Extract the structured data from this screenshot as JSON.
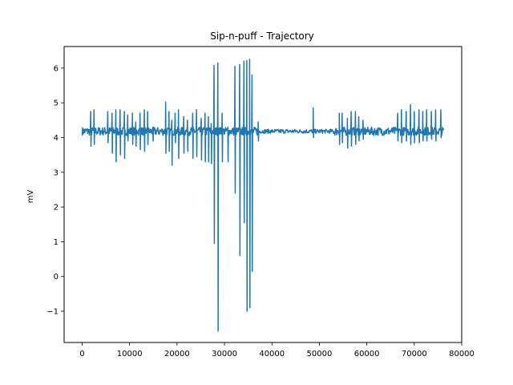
{
  "chart_data": {
    "type": "line",
    "title": "Sip-n-puff - Trajectory",
    "xlabel": "",
    "ylabel": "mV",
    "xlim": [
      -3800,
      80000
    ],
    "ylim": [
      -1.9,
      6.62
    ],
    "grid": false,
    "x_ticks": [
      0,
      10000,
      20000,
      30000,
      40000,
      50000,
      60000,
      70000,
      80000
    ],
    "x_tick_labels": [
      "0",
      "10000",
      "20000",
      "30000",
      "40000",
      "50000",
      "60000",
      "70000",
      "80000"
    ],
    "y_ticks": [
      -1,
      0,
      1,
      2,
      3,
      4,
      5,
      6
    ],
    "y_tick_labels": [
      "−1",
      "0",
      "1",
      "2",
      "3",
      "4",
      "5",
      "6"
    ],
    "series": [
      {
        "name": "Trajectory",
        "color": "#1f77b4",
        "baseline": 4.18,
        "noise": 0.12,
        "x_range": [
          0,
          76300
        ],
        "spikes": [
          {
            "x": 1800,
            "hi": 4.75,
            "lo": 3.75
          },
          {
            "x": 2500,
            "hi": 4.8,
            "lo": 3.8
          },
          {
            "x": 5400,
            "hi": 4.75,
            "lo": 3.85
          },
          {
            "x": 6300,
            "hi": 4.7,
            "lo": 3.55
          },
          {
            "x": 7100,
            "hi": 4.8,
            "lo": 3.3
          },
          {
            "x": 8000,
            "hi": 4.8,
            "lo": 3.5
          },
          {
            "x": 8900,
            "hi": 4.75,
            "lo": 3.4
          },
          {
            "x": 9600,
            "hi": 4.65,
            "lo": 3.9
          },
          {
            "x": 10600,
            "hi": 4.7,
            "lo": 3.8
          },
          {
            "x": 11300,
            "hi": 4.45,
            "lo": 3.75
          },
          {
            "x": 12200,
            "hi": 4.7,
            "lo": 3.65
          },
          {
            "x": 13100,
            "hi": 4.8,
            "lo": 3.6
          },
          {
            "x": 13800,
            "hi": 4.75,
            "lo": 3.8
          },
          {
            "x": 14900,
            "hi": 4.3,
            "lo": 3.9
          },
          {
            "x": 17600,
            "hi": 5.02,
            "lo": 3.55
          },
          {
            "x": 18300,
            "hi": 4.75,
            "lo": 3.6
          },
          {
            "x": 18900,
            "hi": 4.5,
            "lo": 3.2
          },
          {
            "x": 19600,
            "hi": 4.7,
            "lo": 3.85
          },
          {
            "x": 20300,
            "hi": 4.8,
            "lo": 3.4
          },
          {
            "x": 21400,
            "hi": 4.6,
            "lo": 3.55
          },
          {
            "x": 22200,
            "hi": 4.5,
            "lo": 3.6
          },
          {
            "x": 23300,
            "hi": 4.7,
            "lo": 3.4
          },
          {
            "x": 24100,
            "hi": 4.8,
            "lo": 3.45
          },
          {
            "x": 25100,
            "hi": 4.55,
            "lo": 3.35
          },
          {
            "x": 25900,
            "hi": 4.7,
            "lo": 3.3
          },
          {
            "x": 26600,
            "hi": 4.6,
            "lo": 3.3
          },
          {
            "x": 27200,
            "hi": 4.4,
            "lo": 3.25
          },
          {
            "x": 27800,
            "hi": 6.08,
            "lo": 0.95
          },
          {
            "x": 28600,
            "hi": 6.15,
            "lo": -1.57
          },
          {
            "x": 29500,
            "hi": 4.7,
            "lo": 3.3
          },
          {
            "x": 30700,
            "hi": 4.3,
            "lo": 3.3
          },
          {
            "x": 32200,
            "hi": 6.05,
            "lo": 2.4
          },
          {
            "x": 33200,
            "hi": 6.1,
            "lo": 0.6
          },
          {
            "x": 34100,
            "hi": 6.2,
            "lo": 1.55
          },
          {
            "x": 34700,
            "hi": 6.22,
            "lo": -1.0
          },
          {
            "x": 35300,
            "hi": 6.25,
            "lo": -0.9
          },
          {
            "x": 35800,
            "hi": 5.8,
            "lo": 0.15
          },
          {
            "x": 37100,
            "hi": 4.45,
            "lo": 3.9
          },
          {
            "x": 48700,
            "hi": 4.85,
            "lo": 4.0
          },
          {
            "x": 54200,
            "hi": 4.7,
            "lo": 3.8
          },
          {
            "x": 54800,
            "hi": 4.7,
            "lo": 3.85
          },
          {
            "x": 55900,
            "hi": 4.55,
            "lo": 3.7
          },
          {
            "x": 56700,
            "hi": 4.75,
            "lo": 3.75
          },
          {
            "x": 57600,
            "hi": 4.75,
            "lo": 3.8
          },
          {
            "x": 58300,
            "hi": 4.6,
            "lo": 3.9
          },
          {
            "x": 59200,
            "hi": 4.5,
            "lo": 3.95
          },
          {
            "x": 66500,
            "hi": 4.7,
            "lo": 3.9
          },
          {
            "x": 67300,
            "hi": 4.8,
            "lo": 3.85
          },
          {
            "x": 68300,
            "hi": 4.75,
            "lo": 3.9
          },
          {
            "x": 69200,
            "hi": 4.95,
            "lo": 3.8
          },
          {
            "x": 70000,
            "hi": 4.75,
            "lo": 3.85
          },
          {
            "x": 71000,
            "hi": 4.8,
            "lo": 3.85
          },
          {
            "x": 71800,
            "hi": 4.75,
            "lo": 3.9
          },
          {
            "x": 72600,
            "hi": 4.8,
            "lo": 3.9
          },
          {
            "x": 73600,
            "hi": 4.75,
            "lo": 3.95
          },
          {
            "x": 74500,
            "hi": 4.8,
            "lo": 3.9
          },
          {
            "x": 75600,
            "hi": 4.8,
            "lo": 4.0
          }
        ]
      }
    ]
  }
}
